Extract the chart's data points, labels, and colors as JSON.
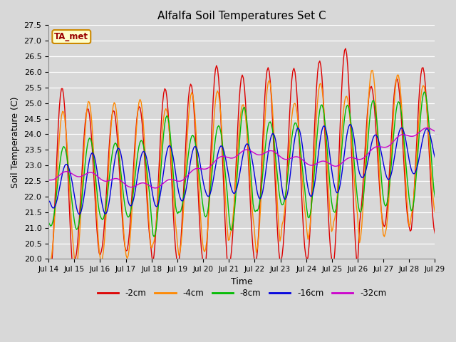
{
  "title": "Alfalfa Soil Temperatures Set C",
  "xlabel": "Time",
  "ylabel": "Soil Temperature (C)",
  "ylim": [
    20.0,
    27.5
  ],
  "bg_color": "#d8d8d8",
  "annotation_text": "TA_met",
  "annotation_bg": "#ffffcc",
  "annotation_border": "#cc8800",
  "annotation_text_color": "#990000",
  "line_colors": {
    "-2cm": "#dd0000",
    "-4cm": "#ff8800",
    "-8cm": "#00bb00",
    "-16cm": "#0000dd",
    "-32cm": "#cc00cc"
  },
  "legend_labels": [
    "-2cm",
    "-4cm",
    "-8cm",
    "-16cm",
    "-32cm"
  ],
  "x_tick_labels": [
    "Jul 14",
    "Jul 15",
    "Jul 16",
    "Jul 17",
    "Jul 18",
    "Jul 19",
    "Jul 20",
    "Jul 21",
    "Jul 22",
    "Jul 23",
    "Jul 24",
    "Jul 25",
    "Jul 26",
    "Jul 27",
    "Jul 28",
    "Jul 29"
  ],
  "num_days": 15,
  "pts_per_day": 24
}
